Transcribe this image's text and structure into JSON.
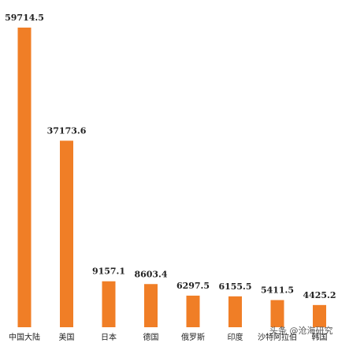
{
  "chart_data": {
    "type": "bar",
    "categories": [
      "中国大陆",
      "美国",
      "日本",
      "德国",
      "俄罗斯",
      "印度",
      "沙特阿拉伯",
      "韩国"
    ],
    "values": [
      59714.5,
      37173.6,
      9157.1,
      8603.4,
      6297.5,
      6155.5,
      5411.5,
      4425.2
    ],
    "color": "#f07e26",
    "annotation": "头条 @沧海研究"
  }
}
